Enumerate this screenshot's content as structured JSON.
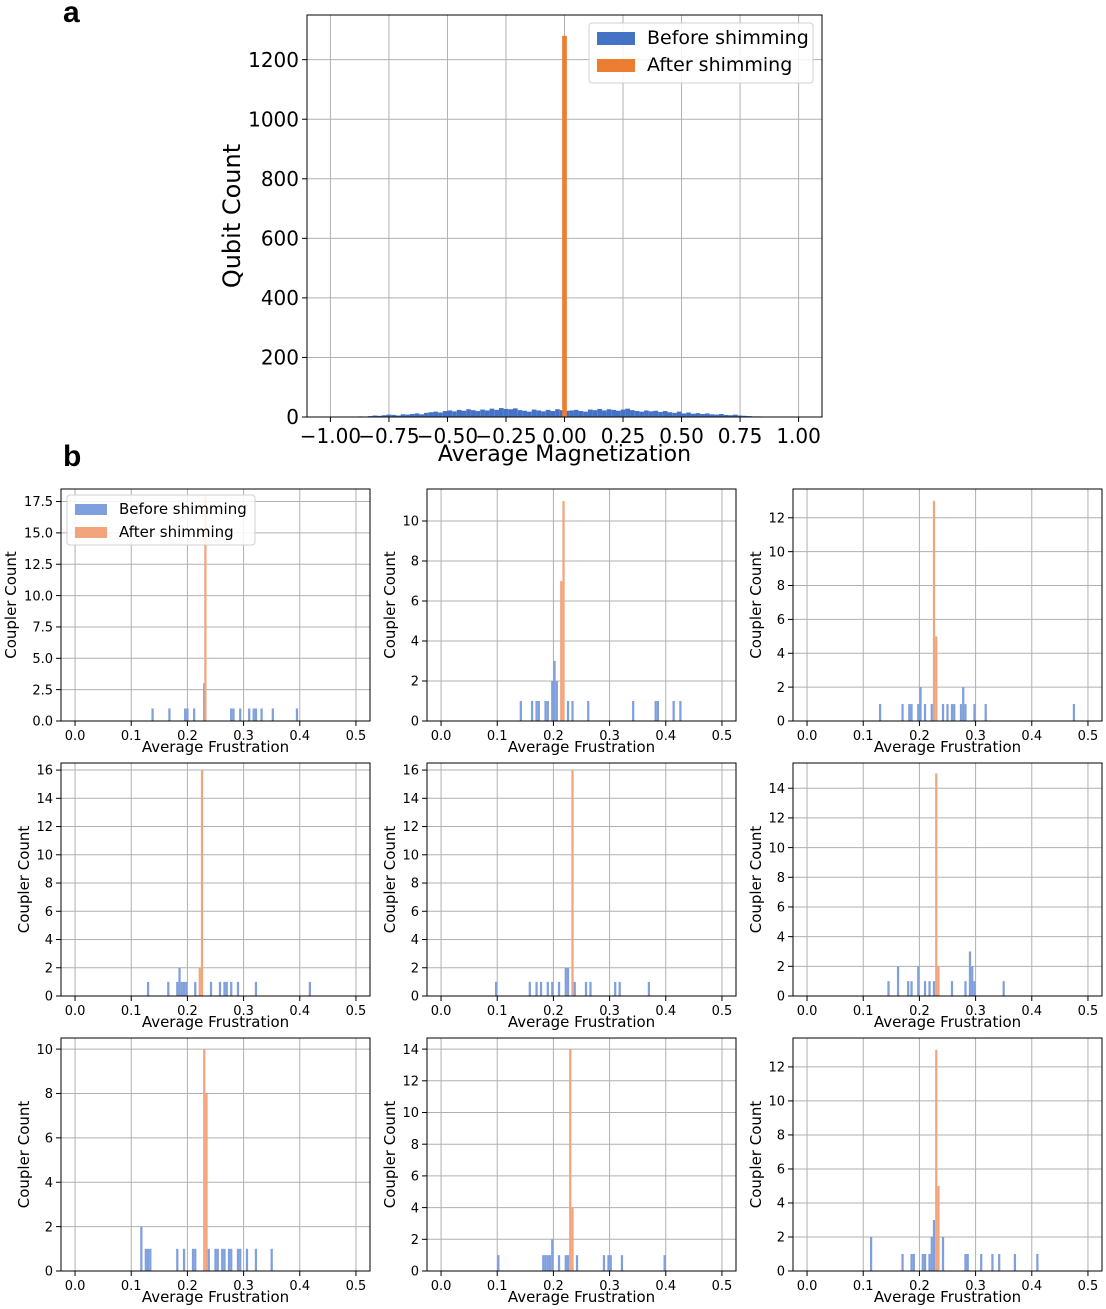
{
  "panel_labels": {
    "a": "a",
    "b": "b"
  },
  "colors": {
    "before": "#4472c4",
    "after": "#ed7d31",
    "before_light": "#7f9fdd",
    "after_light": "#f2a57c",
    "grid": "#b0b0b0"
  },
  "chart_data": [
    {
      "id": "a",
      "type": "bar",
      "xlabel": "Average Magnetization",
      "ylabel": "Qubit Count",
      "xlim": [
        -1.1,
        1.1
      ],
      "ylim": [
        0,
        1350
      ],
      "xticks": [
        -1.0,
        -0.75,
        -0.5,
        -0.25,
        0.0,
        0.25,
        0.5,
        0.75,
        1.0
      ],
      "xtick_labels": [
        "−1.00",
        "−0.75",
        "−0.50",
        "−0.25",
        "0.00",
        "0.25",
        "0.50",
        "0.75",
        "1.00"
      ],
      "yticks": [
        0,
        200,
        400,
        600,
        800,
        1000,
        1200
      ],
      "ytick_labels": [
        "0",
        "200",
        "400",
        "600",
        "800",
        "1000",
        "1200"
      ],
      "grid": true,
      "legend_position": "top-right",
      "bin_width": 0.02,
      "series": [
        {
          "name": "Before shimming",
          "color": "#4472c4",
          "x": [
            -0.87,
            -0.85,
            -0.83,
            -0.81,
            -0.79,
            -0.77,
            -0.75,
            -0.73,
            -0.71,
            -0.69,
            -0.67,
            -0.65,
            -0.63,
            -0.61,
            -0.59,
            -0.57,
            -0.55,
            -0.53,
            -0.51,
            -0.49,
            -0.47,
            -0.45,
            -0.43,
            -0.41,
            -0.39,
            -0.37,
            -0.35,
            -0.33,
            -0.31,
            -0.29,
            -0.27,
            -0.25,
            -0.23,
            -0.21,
            -0.19,
            -0.17,
            -0.15,
            -0.13,
            -0.11,
            -0.09,
            -0.07,
            -0.05,
            -0.03,
            -0.01,
            0.01,
            0.03,
            0.05,
            0.07,
            0.09,
            0.11,
            0.13,
            0.15,
            0.17,
            0.19,
            0.21,
            0.23,
            0.25,
            0.27,
            0.29,
            0.31,
            0.33,
            0.35,
            0.37,
            0.39,
            0.41,
            0.43,
            0.45,
            0.47,
            0.49,
            0.51,
            0.53,
            0.55,
            0.57,
            0.59,
            0.61,
            0.63,
            0.65,
            0.67,
            0.69,
            0.71,
            0.73,
            0.75,
            0.77,
            0.79,
            0.81,
            0.83,
            0.85
          ],
          "values": [
            2,
            1,
            3,
            5,
            4,
            6,
            8,
            7,
            5,
            9,
            8,
            10,
            12,
            9,
            14,
            16,
            18,
            15,
            20,
            22,
            19,
            24,
            21,
            26,
            23,
            20,
            25,
            22,
            28,
            24,
            30,
            27,
            26,
            29,
            23,
            21,
            18,
            25,
            22,
            19,
            24,
            20,
            26,
            23,
            21,
            22,
            24,
            20,
            18,
            25,
            23,
            27,
            22,
            26,
            24,
            21,
            25,
            28,
            23,
            20,
            18,
            22,
            19,
            21,
            17,
            20,
            16,
            14,
            18,
            12,
            15,
            11,
            13,
            10,
            12,
            9,
            8,
            10,
            7,
            6,
            8,
            5,
            4,
            3,
            2,
            2,
            1
          ]
        },
        {
          "name": "After shimming",
          "color": "#ed7d31",
          "x": [
            0.0
          ],
          "values": [
            1280
          ]
        }
      ]
    },
    {
      "id": "b1",
      "type": "bar",
      "xlabel": "Average Frustration",
      "ylabel": "Coupler Count",
      "xlim": [
        -0.025,
        0.525
      ],
      "ylim": [
        0,
        18.5
      ],
      "yticks": [
        0.0,
        2.5,
        5.0,
        7.5,
        10.0,
        12.5,
        15.0,
        17.5
      ],
      "ytick_labels": [
        "0.0",
        "2.5",
        "5.0",
        "7.5",
        "10.0",
        "12.5",
        "15.0",
        "17.5"
      ],
      "xticks": [
        0.0,
        0.1,
        0.2,
        0.3,
        0.4,
        0.5
      ],
      "xtick_labels": [
        "0.0",
        "0.1",
        "0.2",
        "0.3",
        "0.4",
        "0.5"
      ],
      "grid": true,
      "legend_position": "top-left",
      "bin_width": 0.004,
      "series": [
        {
          "name": "Before shimming",
          "color": "#7f9fdd",
          "x": [
            0.138,
            0.168,
            0.196,
            0.2,
            0.2,
            0.212,
            0.23,
            0.278,
            0.282,
            0.294,
            0.31,
            0.318,
            0.322,
            0.332,
            0.352,
            0.395
          ],
          "values": [
            1,
            1,
            1,
            1,
            1,
            1,
            3,
            1,
            1,
            1,
            1,
            1,
            1,
            1,
            1,
            1
          ]
        },
        {
          "name": "After shimming",
          "color": "#f2a57c",
          "x": [
            0.232
          ],
          "values": [
            18
          ]
        }
      ]
    },
    {
      "id": "b2",
      "type": "bar",
      "xlabel": "Average Frustration",
      "ylabel": "Coupler Count",
      "xlim": [
        -0.025,
        0.525
      ],
      "ylim": [
        0,
        11.6
      ],
      "yticks": [
        0,
        2,
        4,
        6,
        8,
        10
      ],
      "ytick_labels": [
        "0",
        "2",
        "4",
        "6",
        "8",
        "10"
      ],
      "xticks": [
        0.0,
        0.1,
        0.2,
        0.3,
        0.4,
        0.5
      ],
      "xtick_labels": [
        "0.0",
        "0.1",
        "0.2",
        "0.3",
        "0.4",
        "0.5"
      ],
      "grid": true,
      "bin_width": 0.004,
      "series": [
        {
          "name": "Before shimming",
          "color": "#7f9fdd",
          "x": [
            0.142,
            0.162,
            0.17,
            0.174,
            0.186,
            0.19,
            0.198,
            0.202,
            0.206,
            0.226,
            0.234,
            0.262,
            0.342,
            0.382,
            0.386,
            0.414,
            0.426
          ],
          "values": [
            1,
            1,
            1,
            1,
            1,
            1,
            2,
            3,
            2,
            1,
            1,
            1,
            1,
            1,
            1,
            1,
            1
          ]
        },
        {
          "name": "After shimming",
          "color": "#f2a57c",
          "x": [
            0.214,
            0.218
          ],
          "values": [
            7,
            11
          ]
        }
      ]
    },
    {
      "id": "b3",
      "type": "bar",
      "xlabel": "Average Frustration",
      "ylabel": "Coupler Count",
      "xlim": [
        -0.025,
        0.525
      ],
      "ylim": [
        0,
        13.7
      ],
      "yticks": [
        0,
        2,
        4,
        6,
        8,
        10,
        12
      ],
      "ytick_labels": [
        "0",
        "2",
        "4",
        "6",
        "8",
        "10",
        "12"
      ],
      "xticks": [
        0.0,
        0.1,
        0.2,
        0.3,
        0.4,
        0.5
      ],
      "xtick_labels": [
        "0.0",
        "0.1",
        "0.2",
        "0.3",
        "0.4",
        "0.5"
      ],
      "grid": true,
      "bin_width": 0.004,
      "series": [
        {
          "name": "Before shimming",
          "color": "#7f9fdd",
          "x": [
            0.13,
            0.17,
            0.182,
            0.186,
            0.198,
            0.202,
            0.21,
            0.222,
            0.242,
            0.25,
            0.258,
            0.262,
            0.274,
            0.278,
            0.282,
            0.298,
            0.318,
            0.475
          ],
          "values": [
            1,
            1,
            1,
            1,
            1,
            2,
            1,
            1,
            1,
            1,
            1,
            1,
            1,
            2,
            1,
            1,
            1,
            1
          ]
        },
        {
          "name": "After shimming",
          "color": "#f2a57c",
          "x": [
            0.226,
            0.23
          ],
          "values": [
            13,
            5
          ]
        }
      ]
    },
    {
      "id": "b4",
      "type": "bar",
      "xlabel": "Average Frustration",
      "ylabel": "Coupler Count",
      "xlim": [
        -0.025,
        0.525
      ],
      "ylim": [
        0,
        16.5
      ],
      "yticks": [
        0,
        2,
        4,
        6,
        8,
        10,
        12,
        14,
        16
      ],
      "ytick_labels": [
        "0",
        "2",
        "4",
        "6",
        "8",
        "10",
        "12",
        "14",
        "16"
      ],
      "xticks": [
        0.0,
        0.1,
        0.2,
        0.3,
        0.4,
        0.5
      ],
      "xtick_labels": [
        "0.0",
        "0.1",
        "0.2",
        "0.3",
        "0.4",
        "0.5"
      ],
      "grid": true,
      "bin_width": 0.004,
      "series": [
        {
          "name": "Before shimming",
          "color": "#7f9fdd",
          "x": [
            0.13,
            0.166,
            0.182,
            0.186,
            0.19,
            0.194,
            0.198,
            0.214,
            0.242,
            0.258,
            0.266,
            0.27,
            0.278,
            0.29,
            0.322,
            0.418
          ],
          "values": [
            1,
            1,
            1,
            2,
            1,
            1,
            1,
            1,
            1,
            1,
            1,
            1,
            1,
            1,
            1,
            1
          ]
        },
        {
          "name": "After shimming",
          "color": "#f2a57c",
          "x": [
            0.222,
            0.226
          ],
          "values": [
            2,
            16
          ]
        }
      ]
    },
    {
      "id": "b5",
      "type": "bar",
      "xlabel": "Average Frustration",
      "ylabel": "Coupler Count",
      "xlim": [
        -0.025,
        0.525
      ],
      "ylim": [
        0,
        16.5
      ],
      "yticks": [
        0,
        2,
        4,
        6,
        8,
        10,
        12,
        14,
        16
      ],
      "ytick_labels": [
        "0",
        "2",
        "4",
        "6",
        "8",
        "10",
        "12",
        "14",
        "16"
      ],
      "xticks": [
        0.0,
        0.1,
        0.2,
        0.3,
        0.4,
        0.5
      ],
      "xtick_labels": [
        "0.0",
        "0.1",
        "0.2",
        "0.3",
        "0.4",
        "0.5"
      ],
      "grid": true,
      "bin_width": 0.004,
      "series": [
        {
          "name": "Before shimming",
          "color": "#7f9fdd",
          "x": [
            0.098,
            0.158,
            0.17,
            0.178,
            0.19,
            0.198,
            0.21,
            0.222,
            0.226,
            0.238,
            0.258,
            0.266,
            0.31,
            0.318,
            0.37
          ],
          "values": [
            1,
            1,
            1,
            1,
            1,
            1,
            1,
            2,
            2,
            1,
            1,
            1,
            1,
            1,
            1
          ]
        },
        {
          "name": "After shimming",
          "color": "#f2a57c",
          "x": [
            0.234
          ],
          "values": [
            16
          ]
        }
      ]
    },
    {
      "id": "b6",
      "type": "bar",
      "xlabel": "Average Frustration",
      "ylabel": "Coupler Count",
      "xlim": [
        -0.025,
        0.525
      ],
      "ylim": [
        0,
        15.7
      ],
      "yticks": [
        0,
        2,
        4,
        6,
        8,
        10,
        12,
        14
      ],
      "ytick_labels": [
        "0",
        "2",
        "4",
        "6",
        "8",
        "10",
        "12",
        "14"
      ],
      "xticks": [
        0.0,
        0.1,
        0.2,
        0.3,
        0.4,
        0.5
      ],
      "xtick_labels": [
        "0.0",
        "0.1",
        "0.2",
        "0.3",
        "0.4",
        "0.5"
      ],
      "grid": true,
      "bin_width": 0.004,
      "series": [
        {
          "name": "Before shimming",
          "color": "#7f9fdd",
          "x": [
            0.145,
            0.162,
            0.18,
            0.186,
            0.198,
            0.21,
            0.218,
            0.226,
            0.258,
            0.282,
            0.29,
            0.294,
            0.298,
            0.35
          ],
          "values": [
            1,
            2,
            1,
            1,
            2,
            1,
            1,
            1,
            1,
            1,
            3,
            2,
            1,
            1
          ]
        },
        {
          "name": "After shimming",
          "color": "#f2a57c",
          "x": [
            0.23,
            0.234
          ],
          "values": [
            15,
            2
          ]
        }
      ]
    },
    {
      "id": "b7",
      "type": "bar",
      "xlabel": "Average Frustration",
      "ylabel": "Coupler Count",
      "xlim": [
        -0.025,
        0.525
      ],
      "ylim": [
        0,
        10.5
      ],
      "yticks": [
        0,
        2,
        4,
        6,
        8,
        10
      ],
      "ytick_labels": [
        "0",
        "2",
        "4",
        "6",
        "8",
        "10"
      ],
      "xticks": [
        0.0,
        0.1,
        0.2,
        0.3,
        0.4,
        0.5
      ],
      "xtick_labels": [
        "0.0",
        "0.1",
        "0.2",
        "0.3",
        "0.4",
        "0.5"
      ],
      "grid": true,
      "bin_width": 0.004,
      "series": [
        {
          "name": "Before shimming",
          "color": "#7f9fdd",
          "x": [
            0.118,
            0.126,
            0.13,
            0.134,
            0.182,
            0.194,
            0.21,
            0.214,
            0.238,
            0.25,
            0.254,
            0.262,
            0.266,
            0.274,
            0.278,
            0.29,
            0.294,
            0.306,
            0.322,
            0.35
          ],
          "values": [
            2,
            1,
            1,
            1,
            1,
            1,
            1,
            1,
            1,
            1,
            1,
            1,
            1,
            1,
            1,
            1,
            1,
            1,
            1,
            1
          ]
        },
        {
          "name": "After shimming",
          "color": "#f2a57c",
          "x": [
            0.23,
            0.234
          ],
          "values": [
            10,
            8
          ]
        }
      ]
    },
    {
      "id": "b8",
      "type": "bar",
      "xlabel": "Average Frustration",
      "ylabel": "Coupler Count",
      "xlim": [
        -0.025,
        0.525
      ],
      "ylim": [
        0,
        14.7
      ],
      "yticks": [
        0,
        2,
        4,
        6,
        8,
        10,
        12,
        14
      ],
      "ytick_labels": [
        "0",
        "2",
        "4",
        "6",
        "8",
        "10",
        "12",
        "14"
      ],
      "xticks": [
        0.0,
        0.1,
        0.2,
        0.3,
        0.4,
        0.5
      ],
      "xtick_labels": [
        "0.0",
        "0.1",
        "0.2",
        "0.3",
        "0.4",
        "0.5"
      ],
      "grid": true,
      "bin_width": 0.004,
      "series": [
        {
          "name": "Before shimming",
          "color": "#7f9fdd",
          "x": [
            0.102,
            0.182,
            0.186,
            0.19,
            0.194,
            0.198,
            0.21,
            0.222,
            0.226,
            0.242,
            0.29,
            0.298,
            0.302,
            0.322,
            0.398
          ],
          "values": [
            1,
            1,
            1,
            1,
            1,
            2,
            1,
            1,
            1,
            1,
            1,
            1,
            1,
            1,
            1
          ]
        },
        {
          "name": "After shimming",
          "color": "#f2a57c",
          "x": [
            0.23,
            0.234
          ],
          "values": [
            14,
            4
          ]
        }
      ]
    },
    {
      "id": "b9",
      "type": "bar",
      "xlabel": "Average Frustration",
      "ylabel": "Coupler Count",
      "xlim": [
        -0.025,
        0.525
      ],
      "ylim": [
        0,
        13.7
      ],
      "yticks": [
        0,
        2,
        4,
        6,
        8,
        10,
        12
      ],
      "ytick_labels": [
        "0",
        "2",
        "4",
        "6",
        "8",
        "10",
        "12"
      ],
      "xticks": [
        0.0,
        0.1,
        0.2,
        0.3,
        0.4,
        0.5
      ],
      "xtick_labels": [
        "0.0",
        "0.1",
        "0.2",
        "0.3",
        "0.4",
        "0.5"
      ],
      "grid": true,
      "bin_width": 0.004,
      "series": [
        {
          "name": "Before shimming",
          "color": "#7f9fdd",
          "x": [
            0.114,
            0.17,
            0.186,
            0.19,
            0.206,
            0.21,
            0.218,
            0.222,
            0.226,
            0.242,
            0.282,
            0.286,
            0.31,
            0.33,
            0.342,
            0.37,
            0.41
          ],
          "values": [
            2,
            1,
            1,
            1,
            1,
            1,
            1,
            2,
            3,
            2,
            1,
            1,
            1,
            1,
            1,
            1,
            1
          ]
        },
        {
          "name": "After shimming",
          "color": "#f2a57c",
          "x": [
            0.23,
            0.234
          ],
          "values": [
            13,
            5
          ]
        }
      ]
    }
  ],
  "legend_b": {
    "before": "Before shimming",
    "after": "After shimming"
  }
}
